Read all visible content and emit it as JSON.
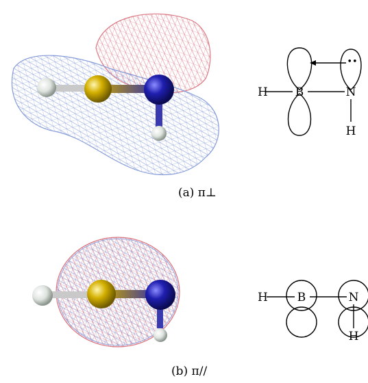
{
  "panel_a": {
    "caption": "(a) π⊥",
    "scheme_atoms": {
      "h_left": "H",
      "b": "B",
      "n": "N",
      "h_bottom": "H"
    },
    "lone_pair": "••"
  },
  "panel_b": {
    "caption": "(b) π//",
    "scheme_atoms": {
      "h_left": "H",
      "b": "B",
      "n": "N",
      "h_bottom": "H"
    }
  },
  "colors": {
    "boron": "#d4b000",
    "nitrogen": "#1f1fb0",
    "hydrogen": "#e8ece8",
    "positive_lobe": "#d9707c",
    "negative_lobe": "#7f96d6"
  }
}
